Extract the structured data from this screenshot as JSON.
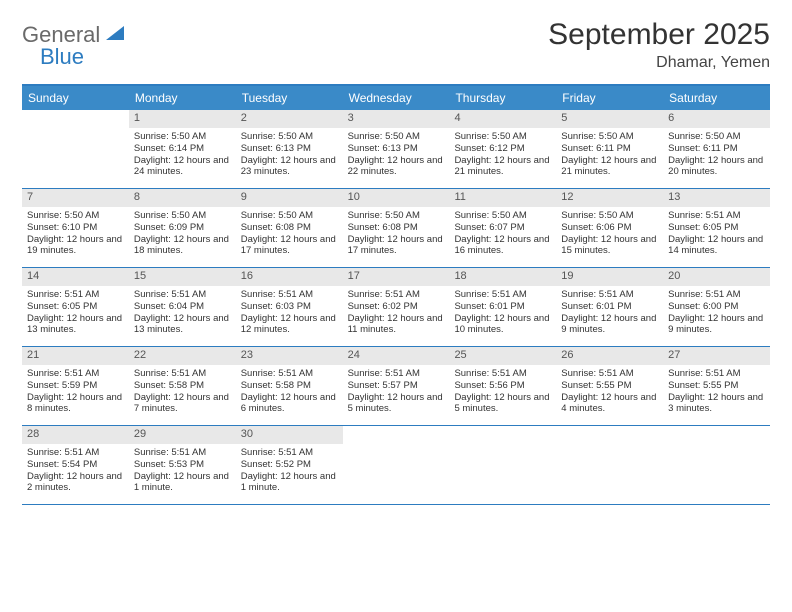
{
  "brand": {
    "text1": "General",
    "text2": "Blue"
  },
  "title": "September 2025",
  "location": "Dhamar, Yemen",
  "colors": {
    "headerBg": "#3a8ac8",
    "headerBorder": "#2d7cc0",
    "dayNumBg": "#e8e8e8",
    "text": "#333333",
    "logoAccent": "#2d7cc0",
    "logoGray": "#6a6a6a"
  },
  "dayNames": [
    "Sunday",
    "Monday",
    "Tuesday",
    "Wednesday",
    "Thursday",
    "Friday",
    "Saturday"
  ],
  "weeks": [
    [
      null,
      {
        "n": "1",
        "sr": "5:50 AM",
        "ss": "6:14 PM",
        "dl": "12 hours and 24 minutes."
      },
      {
        "n": "2",
        "sr": "5:50 AM",
        "ss": "6:13 PM",
        "dl": "12 hours and 23 minutes."
      },
      {
        "n": "3",
        "sr": "5:50 AM",
        "ss": "6:13 PM",
        "dl": "12 hours and 22 minutes."
      },
      {
        "n": "4",
        "sr": "5:50 AM",
        "ss": "6:12 PM",
        "dl": "12 hours and 21 minutes."
      },
      {
        "n": "5",
        "sr": "5:50 AM",
        "ss": "6:11 PM",
        "dl": "12 hours and 21 minutes."
      },
      {
        "n": "6",
        "sr": "5:50 AM",
        "ss": "6:11 PM",
        "dl": "12 hours and 20 minutes."
      }
    ],
    [
      {
        "n": "7",
        "sr": "5:50 AM",
        "ss": "6:10 PM",
        "dl": "12 hours and 19 minutes."
      },
      {
        "n": "8",
        "sr": "5:50 AM",
        "ss": "6:09 PM",
        "dl": "12 hours and 18 minutes."
      },
      {
        "n": "9",
        "sr": "5:50 AM",
        "ss": "6:08 PM",
        "dl": "12 hours and 17 minutes."
      },
      {
        "n": "10",
        "sr": "5:50 AM",
        "ss": "6:08 PM",
        "dl": "12 hours and 17 minutes."
      },
      {
        "n": "11",
        "sr": "5:50 AM",
        "ss": "6:07 PM",
        "dl": "12 hours and 16 minutes."
      },
      {
        "n": "12",
        "sr": "5:50 AM",
        "ss": "6:06 PM",
        "dl": "12 hours and 15 minutes."
      },
      {
        "n": "13",
        "sr": "5:51 AM",
        "ss": "6:05 PM",
        "dl": "12 hours and 14 minutes."
      }
    ],
    [
      {
        "n": "14",
        "sr": "5:51 AM",
        "ss": "6:05 PM",
        "dl": "12 hours and 13 minutes."
      },
      {
        "n": "15",
        "sr": "5:51 AM",
        "ss": "6:04 PM",
        "dl": "12 hours and 13 minutes."
      },
      {
        "n": "16",
        "sr": "5:51 AM",
        "ss": "6:03 PM",
        "dl": "12 hours and 12 minutes."
      },
      {
        "n": "17",
        "sr": "5:51 AM",
        "ss": "6:02 PM",
        "dl": "12 hours and 11 minutes."
      },
      {
        "n": "18",
        "sr": "5:51 AM",
        "ss": "6:01 PM",
        "dl": "12 hours and 10 minutes."
      },
      {
        "n": "19",
        "sr": "5:51 AM",
        "ss": "6:01 PM",
        "dl": "12 hours and 9 minutes."
      },
      {
        "n": "20",
        "sr": "5:51 AM",
        "ss": "6:00 PM",
        "dl": "12 hours and 9 minutes."
      }
    ],
    [
      {
        "n": "21",
        "sr": "5:51 AM",
        "ss": "5:59 PM",
        "dl": "12 hours and 8 minutes."
      },
      {
        "n": "22",
        "sr": "5:51 AM",
        "ss": "5:58 PM",
        "dl": "12 hours and 7 minutes."
      },
      {
        "n": "23",
        "sr": "5:51 AM",
        "ss": "5:58 PM",
        "dl": "12 hours and 6 minutes."
      },
      {
        "n": "24",
        "sr": "5:51 AM",
        "ss": "5:57 PM",
        "dl": "12 hours and 5 minutes."
      },
      {
        "n": "25",
        "sr": "5:51 AM",
        "ss": "5:56 PM",
        "dl": "12 hours and 5 minutes."
      },
      {
        "n": "26",
        "sr": "5:51 AM",
        "ss": "5:55 PM",
        "dl": "12 hours and 4 minutes."
      },
      {
        "n": "27",
        "sr": "5:51 AM",
        "ss": "5:55 PM",
        "dl": "12 hours and 3 minutes."
      }
    ],
    [
      {
        "n": "28",
        "sr": "5:51 AM",
        "ss": "5:54 PM",
        "dl": "12 hours and 2 minutes."
      },
      {
        "n": "29",
        "sr": "5:51 AM",
        "ss": "5:53 PM",
        "dl": "12 hours and 1 minute."
      },
      {
        "n": "30",
        "sr": "5:51 AM",
        "ss": "5:52 PM",
        "dl": "12 hours and 1 minute."
      },
      null,
      null,
      null,
      null
    ]
  ],
  "labels": {
    "sunrise": "Sunrise:",
    "sunset": "Sunset:",
    "daylight": "Daylight:"
  }
}
